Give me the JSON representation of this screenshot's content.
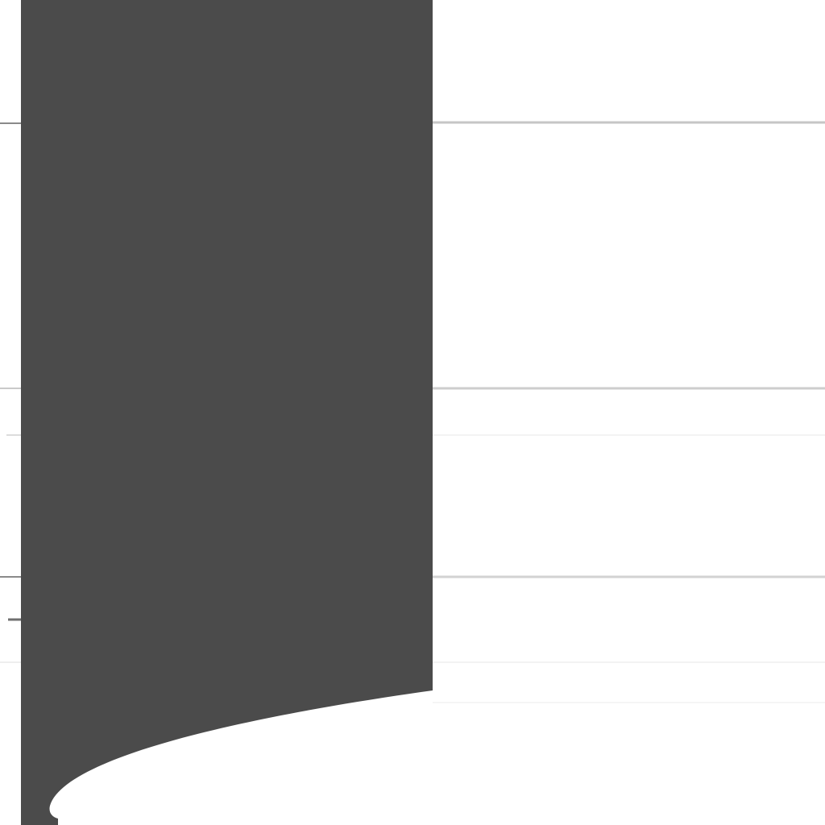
{
  "colors": {
    "background": "#ffffff",
    "panel_fill": "#4b4b4b",
    "rule_strong": "#c6c6c6",
    "rule_soft": "#e2e2e2",
    "rule_faint": "#f3f3f3",
    "tick_mark": "#8a8a8a"
  },
  "panel": {
    "shape": "dark panel with a curved (sweeping) lower edge"
  },
  "rules": {
    "count": 6
  }
}
